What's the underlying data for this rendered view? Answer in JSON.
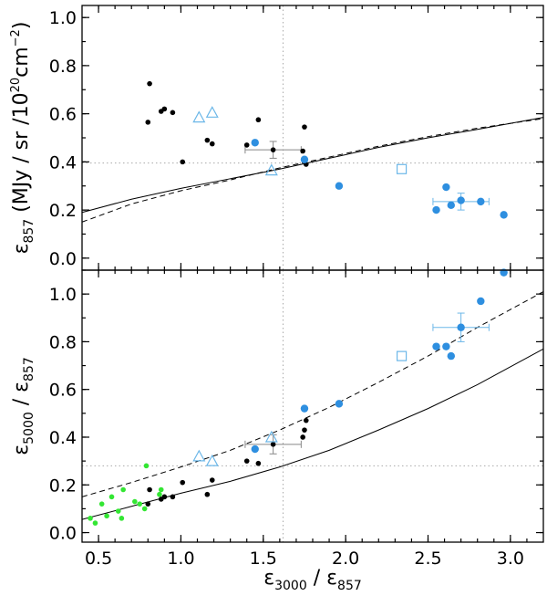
{
  "chart_data": [
    {
      "type": "scatter",
      "panel": "top",
      "xlim": [
        0.4,
        3.2
      ],
      "ylim": [
        -0.05,
        1.05
      ],
      "xlabel": "",
      "ylabel_parts": {
        "symbol": "ε",
        "sub": "857",
        "rest": " (MJy / sr /10",
        "sup1": "20",
        "unit": "cm",
        "sup2": "−2",
        "close": ")"
      },
      "yticks": [
        0.0,
        0.2,
        0.4,
        0.6,
        0.8,
        1.0
      ],
      "ytick_labels": [
        "0.0",
        "0.2",
        "0.4",
        "0.6",
        "0.8",
        "1.0"
      ],
      "ref_x": 1.62,
      "ref_y": 0.395,
      "colors": {
        "black": "#000000",
        "blue": "#2e8fe0",
        "lightblue": "#6cb7e8",
        "green": "#33e633"
      },
      "series": [
        {
          "name": "black-dots",
          "marker": "dot",
          "color": "black",
          "x": [
            0.81,
            0.8,
            0.88,
            0.9,
            0.95,
            1.01,
            1.16,
            1.19,
            1.4,
            1.47,
            1.56,
            1.74,
            1.75,
            1.76
          ],
          "y": [
            0.725,
            0.565,
            0.61,
            0.62,
            0.605,
            0.4,
            0.49,
            0.475,
            0.47,
            0.575,
            0.45,
            0.445,
            0.545,
            0.39
          ]
        },
        {
          "name": "blue-dots",
          "marker": "bigdot",
          "color": "blue",
          "x": [
            1.45,
            1.75,
            1.96,
            2.55,
            2.61,
            2.64,
            2.7,
            2.82,
            2.96
          ],
          "y": [
            0.48,
            0.41,
            0.3,
            0.2,
            0.295,
            0.22,
            0.24,
            0.235,
            0.18
          ]
        },
        {
          "name": "triangles",
          "marker": "triangle",
          "color": "lightblue",
          "x": [
            1.11,
            1.19,
            1.55
          ],
          "y": [
            0.585,
            0.605,
            0.365
          ]
        },
        {
          "name": "square",
          "marker": "square",
          "color": "lightblue",
          "x": [
            2.34
          ],
          "y": [
            0.37
          ]
        }
      ],
      "error_bars": [
        {
          "x": 1.56,
          "y": 0.45,
          "xerr": 0.17,
          "yerr": 0.035,
          "color": "#888888"
        },
        {
          "x": 2.7,
          "y": 0.235,
          "xerr": 0.17,
          "yerr": 0.035,
          "color": "#6cb7e8"
        }
      ],
      "curves": [
        {
          "name": "solid",
          "style": "solid",
          "x": [
            0.4,
            0.7,
            1.0,
            1.3,
            1.6,
            1.9,
            2.2,
            2.5,
            2.8,
            3.2
          ],
          "y": [
            0.19,
            0.245,
            0.29,
            0.33,
            0.37,
            0.415,
            0.46,
            0.5,
            0.535,
            0.585
          ]
        },
        {
          "name": "dashed",
          "style": "dashed",
          "x": [
            0.4,
            0.7,
            1.0,
            1.3,
            1.6,
            1.9,
            2.2,
            2.5,
            2.8,
            3.2
          ],
          "y": [
            0.15,
            0.225,
            0.28,
            0.325,
            0.375,
            0.42,
            0.465,
            0.505,
            0.54,
            0.58
          ]
        }
      ]
    },
    {
      "type": "scatter",
      "panel": "bottom",
      "xlim": [
        0.4,
        3.2
      ],
      "ylim": [
        -0.04,
        1.1
      ],
      "xlabel_parts": {
        "symbol": "ε",
        "sub1": "3000",
        "sep": " / ε",
        "sub2": "857"
      },
      "ylabel_parts": {
        "symbol": "ε",
        "sub1": "5000",
        "sep": " / ε",
        "sub2": "857"
      },
      "xticks": [
        0.5,
        1.0,
        1.5,
        2.0,
        2.5,
        3.0
      ],
      "xtick_labels": [
        "0.5",
        "1.0",
        "1.5",
        "2.0",
        "2.5",
        "3.0"
      ],
      "yticks": [
        0.0,
        0.2,
        0.4,
        0.6,
        0.8,
        1.0
      ],
      "ytick_labels": [
        "0.0",
        "0.2",
        "0.4",
        "0.6",
        "0.8",
        "1.0"
      ],
      "ref_x": 1.62,
      "ref_y": 0.28,
      "series": [
        {
          "name": "green-dots",
          "marker": "dot",
          "color": "green",
          "x": [
            0.45,
            0.48,
            0.52,
            0.55,
            0.58,
            0.62,
            0.64,
            0.65,
            0.72,
            0.75,
            0.78,
            0.79,
            0.87,
            0.88
          ],
          "y": [
            0.06,
            0.04,
            0.12,
            0.07,
            0.15,
            0.09,
            0.06,
            0.18,
            0.13,
            0.12,
            0.1,
            0.28,
            0.16,
            0.18
          ]
        },
        {
          "name": "black-dots",
          "marker": "dot",
          "color": "black",
          "x": [
            0.81,
            0.8,
            0.88,
            0.9,
            0.95,
            1.01,
            1.16,
            1.19,
            1.4,
            1.47,
            1.56,
            1.74,
            1.75,
            1.76
          ],
          "y": [
            0.18,
            0.12,
            0.14,
            0.15,
            0.15,
            0.21,
            0.16,
            0.22,
            0.3,
            0.29,
            0.37,
            0.4,
            0.43,
            0.47
          ]
        },
        {
          "name": "blue-dots",
          "marker": "bigdot",
          "color": "blue",
          "x": [
            1.45,
            1.75,
            1.96,
            2.55,
            2.61,
            2.64,
            2.7,
            2.82,
            2.96
          ],
          "y": [
            0.35,
            0.52,
            0.54,
            0.78,
            0.78,
            0.74,
            0.86,
            0.97,
            1.09
          ]
        },
        {
          "name": "triangles",
          "marker": "triangle",
          "color": "lightblue",
          "x": [
            1.11,
            1.19,
            1.55
          ],
          "y": [
            0.32,
            0.3,
            0.4
          ]
        },
        {
          "name": "square",
          "marker": "square",
          "color": "lightblue",
          "x": [
            2.34
          ],
          "y": [
            0.74
          ]
        }
      ],
      "error_bars": [
        {
          "x": 1.56,
          "y": 0.37,
          "xerr": 0.17,
          "yerr": 0.04,
          "color": "#888888"
        },
        {
          "x": 2.7,
          "y": 0.86,
          "xerr": 0.17,
          "yerr": 0.06,
          "color": "#6cb7e8"
        }
      ],
      "curves": [
        {
          "name": "solid",
          "style": "solid",
          "x": [
            0.4,
            0.7,
            1.0,
            1.3,
            1.6,
            1.9,
            2.2,
            2.5,
            2.8,
            3.2
          ],
          "y": [
            0.055,
            0.11,
            0.165,
            0.215,
            0.275,
            0.345,
            0.43,
            0.52,
            0.62,
            0.77
          ]
        },
        {
          "name": "dashed",
          "style": "dashed",
          "x": [
            0.4,
            0.7,
            1.0,
            1.3,
            1.6,
            1.9,
            2.2,
            2.5,
            2.8,
            3.2
          ],
          "y": [
            0.15,
            0.21,
            0.275,
            0.345,
            0.43,
            0.525,
            0.63,
            0.74,
            0.86,
            1.01
          ]
        }
      ]
    }
  ]
}
